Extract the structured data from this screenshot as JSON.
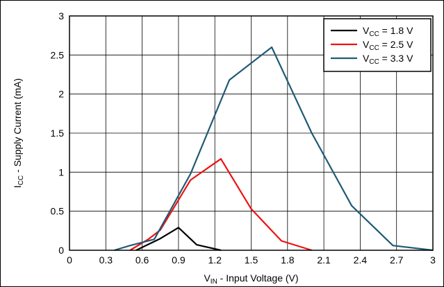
{
  "chart_data": {
    "type": "line",
    "xlabel": {
      "main": "V",
      "sub": "IN",
      "rest": " - Input Voltage (V)"
    },
    "ylabel": {
      "main": "I",
      "sub": "CC",
      "rest": " - Supply Current (mA)"
    },
    "xlim": [
      0,
      3
    ],
    "ylim": [
      0,
      3
    ],
    "x_ticks": [
      0,
      0.3,
      0.6,
      0.9,
      1.2,
      1.5,
      1.8,
      2.1,
      2.4,
      2.7,
      3
    ],
    "x_tick_labels": [
      "0",
      "0.3",
      "0.6",
      "0.9",
      "1.2",
      "1.5",
      "1.8",
      "2.1",
      "2.4",
      "2.7",
      "3"
    ],
    "y_ticks": [
      0,
      0.5,
      1,
      1.5,
      2,
      2.5,
      3
    ],
    "y_tick_labels": [
      "0",
      "0.5",
      "1",
      "1.5",
      "2",
      "2.5",
      "3"
    ],
    "grid": true,
    "legend_position": "top-right",
    "series": [
      {
        "label_main": "V",
        "label_sub": "CC",
        "label_rest": " = 1.8 V",
        "color": "#000000",
        "x": [
          0.55,
          0.75,
          0.9,
          1.05,
          1.25
        ],
        "y": [
          0.0,
          0.15,
          0.29,
          0.07,
          0.0
        ]
      },
      {
        "label_main": "V",
        "label_sub": "CC",
        "label_rest": " = 2.5 V",
        "color": "#ee1111",
        "x": [
          0.5,
          0.65,
          0.75,
          1.0,
          1.25,
          1.5,
          1.75,
          2.0
        ],
        "y": [
          0.0,
          0.14,
          0.26,
          0.9,
          1.17,
          0.53,
          0.12,
          0.0
        ]
      },
      {
        "label_main": "V",
        "label_sub": "CC",
        "label_rest": " = 3.3 V",
        "color": "#1f5a74",
        "x": [
          0.37,
          0.5,
          0.7,
          1.0,
          1.32,
          1.67,
          2.0,
          2.33,
          2.67,
          3.0
        ],
        "y": [
          0.0,
          0.06,
          0.14,
          0.98,
          2.18,
          2.6,
          1.5,
          0.57,
          0.06,
          0.0
        ]
      }
    ]
  }
}
